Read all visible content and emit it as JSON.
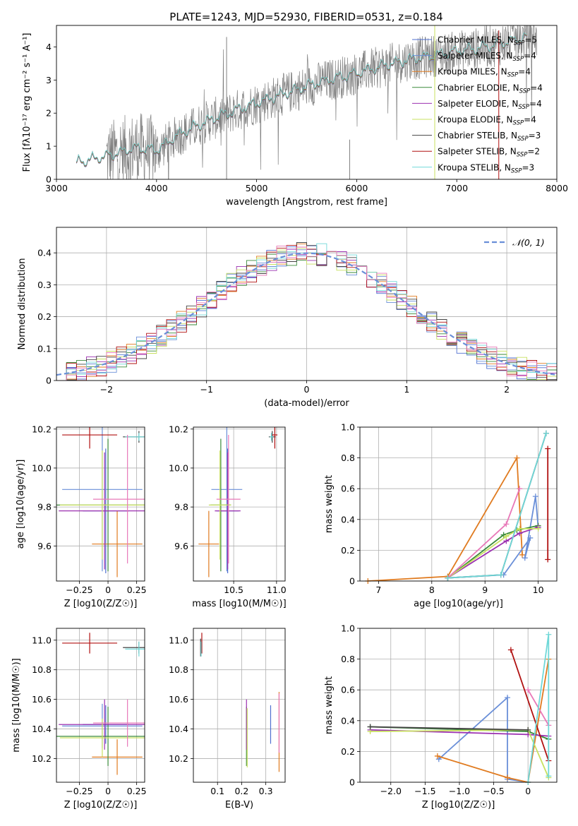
{
  "figure": {
    "title": "PLATE=1243, MJD=52930, FIBERID=0531, z=0.184"
  },
  "colors": {
    "Chabrier MILES": "#4f6fd0",
    "Salpeter MILES": "#6a8fd8",
    "Kroupa MILES": "#e07b20",
    "Chabrier ELODIE": "#3a8a3a",
    "Salpeter ELODIE": "#9b30b0",
    "Kroupa ELODIE": "#c8e060",
    "Chabrier STELIB": "#444444",
    "Salpeter STELIB": "#b01010",
    "Kroupa STELIB": "#70d8d8",
    "pink": "#e878b8",
    "data": "#808080",
    "gauss": "#6a8fd8"
  },
  "chart_data": [
    {
      "id": "spectrum",
      "type": "line",
      "xlabel": "wavelength [Angstrom, rest frame]",
      "ylabel": "Flux [fλ10⁻¹⁷ erg cm⁻² s⁻¹ A⁻¹]",
      "xlim": [
        3000,
        8000
      ],
      "ylim": [
        0,
        4.65
      ],
      "xticks": [
        3000,
        4000,
        5000,
        6000,
        7000,
        8000
      ],
      "yticks": [
        0,
        1,
        2,
        3,
        4
      ],
      "legend_position": "top-right",
      "legend": [
        "Chabrier MILES, NSSP=5",
        "Salpeter MILES, NSSP=4",
        "Kroupa MILES, NSSP=4",
        "Chabrier ELODIE, NSSP=4",
        "Salpeter ELODIE, NSSP=4",
        "Kroupa ELODIE, NSSP=4",
        "Chabrier STELIB, NSSP=3",
        "Salpeter STELIB, NSSP=2",
        "Kroupa STELIB, NSSP=3"
      ],
      "continuum": {
        "x": [
          3200,
          3500,
          3800,
          4000,
          4200,
          4500,
          5000,
          5300,
          5600,
          6000,
          6500,
          7000,
          7400,
          7700
        ],
        "y": [
          0.5,
          0.7,
          0.95,
          0.85,
          1.3,
          1.75,
          2.3,
          2.6,
          2.9,
          3.2,
          3.6,
          3.85,
          4.05,
          4.3
        ]
      }
    },
    {
      "id": "residuals",
      "type": "line",
      "xlabel": "(data-model)/error",
      "ylabel": "Normed distribution",
      "xlim": [
        -2.5,
        2.5
      ],
      "ylim": [
        0,
        0.48
      ],
      "xticks": [
        -2,
        -1,
        0,
        1,
        2
      ],
      "yticks": [
        0.0,
        0.1,
        0.2,
        0.3,
        0.4
      ],
      "legend": [
        "𝒩(0, 1)"
      ],
      "legend_position": "top-right",
      "series": [
        {
          "name": "N(0,1)",
          "type": "gaussian",
          "mu": 0,
          "sigma": 1
        }
      ]
    },
    {
      "id": "age_vs_Z",
      "type": "scatter",
      "xlabel": "Z [log10(Z/Z☉)]",
      "ylabel": "age [log10(age/yr)]",
      "xlim": [
        -0.45,
        0.32
      ],
      "ylim": [
        9.42,
        10.21
      ],
      "xticks": [
        -0.25,
        0.0,
        0.25
      ],
      "yticks": [
        9.6,
        9.8,
        10.0,
        10.2
      ],
      "points": [
        {
          "model": "Chabrier MILES",
          "x": -0.02,
          "y": 9.78,
          "xerr": 0.2,
          "yerr": 0.32
        },
        {
          "model": "Salpeter MILES",
          "x": -0.05,
          "y": 9.89,
          "xerr": 0.35,
          "yerr": 0.42
        },
        {
          "model": "Kroupa MILES",
          "x": 0.08,
          "y": 9.61,
          "xerr": 0.22,
          "yerr": 0.17
        },
        {
          "model": "Chabrier ELODIE",
          "x": 0.0,
          "y": 9.81,
          "xerr": 0.45,
          "yerr": 0.34
        },
        {
          "model": "Salpeter ELODIE",
          "x": -0.03,
          "y": 9.78,
          "xerr": 0.4,
          "yerr": 0.3
        },
        {
          "model": "Kroupa ELODIE",
          "x": -0.05,
          "y": 9.81,
          "xerr": 0.37,
          "yerr": 0.28
        },
        {
          "model": "Chabrier STELIB",
          "x": 0.27,
          "y": 10.16,
          "xerr": 0.14,
          "yerr": 0.03
        },
        {
          "model": "Salpeter STELIB",
          "x": -0.16,
          "y": 10.17,
          "xerr": 0.24,
          "yerr": 0.07
        },
        {
          "model": "Kroupa STELIB",
          "x": 0.27,
          "y": 10.16,
          "xerr": 0.12,
          "yerr": 0.02
        },
        {
          "model": "pink",
          "x": 0.17,
          "y": 9.84,
          "xerr": 0.3,
          "yerr": 0.33
        }
      ]
    },
    {
      "id": "age_vs_mass",
      "type": "scatter",
      "xlabel": "mass [log10(M/M☉)]",
      "ylabel": "",
      "xlim": [
        10.03,
        11.1
      ],
      "ylim": [
        9.42,
        10.21
      ],
      "xticks": [
        10.5,
        11.0
      ],
      "yticks": [
        9.6,
        9.8,
        10.0,
        10.2
      ],
      "points": [
        {
          "model": "Chabrier MILES",
          "x": 10.43,
          "y": 9.78,
          "xerr": 0.13,
          "yerr": 0.32
        },
        {
          "model": "Salpeter MILES",
          "x": 10.42,
          "y": 9.89,
          "xerr": 0.18,
          "yerr": 0.42
        },
        {
          "model": "Kroupa MILES",
          "x": 10.21,
          "y": 9.61,
          "xerr": 0.12,
          "yerr": 0.17
        },
        {
          "model": "Chabrier ELODIE",
          "x": 10.35,
          "y": 9.81,
          "xerr": 0.12,
          "yerr": 0.34
        },
        {
          "model": "Salpeter ELODIE",
          "x": 10.43,
          "y": 9.78,
          "xerr": 0.15,
          "yerr": 0.3
        },
        {
          "model": "Kroupa ELODIE",
          "x": 10.34,
          "y": 9.81,
          "xerr": 0.13,
          "yerr": 0.28
        },
        {
          "model": "Chabrier STELIB",
          "x": 10.95,
          "y": 10.16,
          "xerr": 0.04,
          "yerr": 0.03
        },
        {
          "model": "Salpeter STELIB",
          "x": 10.98,
          "y": 10.17,
          "xerr": 0.03,
          "yerr": 0.07
        },
        {
          "model": "Kroupa STELIB",
          "x": 10.94,
          "y": 10.16,
          "xerr": 0.02,
          "yerr": 0.02
        },
        {
          "model": "pink",
          "x": 10.44,
          "y": 9.84,
          "xerr": 0.14,
          "yerr": 0.33
        }
      ]
    },
    {
      "id": "weight_vs_age",
      "type": "line",
      "xlabel": "age [log10(age/yr)]",
      "ylabel": "mass weight",
      "xlim": [
        6.65,
        10.35
      ],
      "ylim": [
        0,
        1.0
      ],
      "xticks": [
        7,
        8,
        9,
        10
      ],
      "yticks": [
        0.0,
        0.2,
        0.4,
        0.6,
        0.8,
        1.0
      ],
      "series": [
        {
          "model": "Kroupa MILES",
          "x": [
            6.8,
            8.3,
            9.6,
            9.7
          ],
          "y": [
            0.0,
            0.03,
            0.8,
            0.17
          ]
        },
        {
          "model": "Salpeter MILES",
          "x": [
            8.3,
            9.35,
            9.85,
            9.75,
            9.95,
            10.0
          ],
          "y": [
            0.02,
            0.04,
            0.28,
            0.15,
            0.55,
            0.35
          ]
        },
        {
          "model": "Chabrier ELODIE",
          "x": [
            8.3,
            9.35,
            9.6,
            10.0
          ],
          "y": [
            0.02,
            0.3,
            0.33,
            0.36
          ]
        },
        {
          "model": "Salpeter ELODIE",
          "x": [
            8.3,
            9.4,
            9.65,
            10.0
          ],
          "y": [
            0.02,
            0.26,
            0.31,
            0.35
          ]
        },
        {
          "model": "Kroupa ELODIE",
          "x": [
            8.3,
            9.4,
            9.65,
            10.0
          ],
          "y": [
            0.02,
            0.29,
            0.34,
            0.34
          ]
        },
        {
          "model": "pink",
          "x": [
            8.3,
            9.4,
            9.65
          ],
          "y": [
            0.02,
            0.37,
            0.6
          ]
        },
        {
          "model": "Chabrier STELIB",
          "x": [
            8.3,
            9.3,
            10.15
          ],
          "y": [
            0.02,
            0.04,
            0.96
          ]
        },
        {
          "model": "Salpeter STELIB",
          "x": [
            10.18,
            10.18
          ],
          "y": [
            0.14,
            0.86
          ]
        },
        {
          "model": "Kroupa STELIB",
          "x": [
            8.3,
            9.3,
            10.15
          ],
          "y": [
            0.02,
            0.04,
            0.96
          ]
        }
      ]
    },
    {
      "id": "mass_vs_Z",
      "type": "scatter",
      "xlabel": "Z [log10(Z/Z☉)]",
      "ylabel": "mass [log10(M/M☉)]",
      "xlim": [
        -0.45,
        0.32
      ],
      "ylim": [
        10.04,
        11.08
      ],
      "xticks": [
        -0.25,
        0.0,
        0.25
      ],
      "yticks": [
        10.2,
        10.4,
        10.6,
        10.8,
        11.0
      ],
      "points": [
        {
          "model": "Chabrier MILES",
          "x": -0.02,
          "y": 10.43,
          "xerr": 0.2,
          "yerr": 0.13
        },
        {
          "model": "Salpeter MILES",
          "x": -0.05,
          "y": 10.42,
          "xerr": 0.35,
          "yerr": 0.15
        },
        {
          "model": "Kroupa MILES",
          "x": 0.08,
          "y": 10.21,
          "xerr": 0.22,
          "yerr": 0.12
        },
        {
          "model": "Chabrier ELODIE",
          "x": 0.0,
          "y": 10.35,
          "xerr": 0.45,
          "yerr": 0.2
        },
        {
          "model": "Salpeter ELODIE",
          "x": -0.03,
          "y": 10.43,
          "xerr": 0.4,
          "yerr": 0.17
        },
        {
          "model": "Kroupa ELODIE",
          "x": -0.05,
          "y": 10.34,
          "xerr": 0.37,
          "yerr": 0.13
        },
        {
          "model": "Chabrier STELIB",
          "x": 0.27,
          "y": 10.95,
          "xerr": 0.14,
          "yerr": 0.04
        },
        {
          "model": "Salpeter STELIB",
          "x": -0.16,
          "y": 10.98,
          "xerr": 0.24,
          "yerr": 0.07
        },
        {
          "model": "Kroupa STELIB",
          "x": 0.27,
          "y": 10.94,
          "xerr": 0.12,
          "yerr": 0.05
        },
        {
          "model": "pink",
          "x": 0.17,
          "y": 10.44,
          "xerr": 0.3,
          "yerr": 0.16
        }
      ]
    },
    {
      "id": "mass_vs_EBV",
      "type": "scatter",
      "xlabel": "E(B-V)",
      "ylabel": "",
      "xlim": [
        0.0,
        0.38
      ],
      "ylim": [
        10.04,
        11.08
      ],
      "xticks": [
        0.1,
        0.2,
        0.3
      ],
      "yticks": [
        10.2,
        10.4,
        10.6,
        10.8,
        11.0
      ],
      "points": [
        {
          "model": "Chabrier MILES",
          "x": 0.32,
          "y": 10.43,
          "xerr": 0.0,
          "yerr": 0.13
        },
        {
          "model": "Kroupa MILES",
          "x": 0.355,
          "y": 10.38,
          "xerr": 0.0,
          "yerr": 0.27
        },
        {
          "model": "Chabrier ELODIE",
          "x": 0.22,
          "y": 10.35,
          "xerr": 0.0,
          "yerr": 0.2
        },
        {
          "model": "Salpeter ELODIE",
          "x": 0.22,
          "y": 10.43,
          "xerr": 0.0,
          "yerr": 0.17
        },
        {
          "model": "Kroupa ELODIE",
          "x": 0.223,
          "y": 10.34,
          "xerr": 0.0,
          "yerr": 0.2
        },
        {
          "model": "pink",
          "x": 0.355,
          "y": 10.44,
          "xerr": 0.0,
          "yerr": 0.2
        },
        {
          "model": "Chabrier STELIB",
          "x": 0.03,
          "y": 10.95,
          "xerr": 0.0,
          "yerr": 0.06
        },
        {
          "model": "Salpeter STELIB",
          "x": 0.035,
          "y": 10.98,
          "xerr": 0.0,
          "yerr": 0.07
        },
        {
          "model": "Kroupa STELIB",
          "x": 0.032,
          "y": 10.94,
          "xerr": 0.0,
          "yerr": 0.05
        }
      ]
    },
    {
      "id": "weight_vs_Z",
      "type": "line",
      "xlabel": "Z [log10(Z/Z☉)]",
      "ylabel": "mass weight",
      "xlim": [
        -2.45,
        0.42
      ],
      "ylim": [
        0,
        1.0
      ],
      "xticks": [
        -2.0,
        -1.5,
        -1.0,
        -0.5,
        0.0
      ],
      "yticks": [
        0.0,
        0.2,
        0.4,
        0.6,
        0.8,
        1.0
      ],
      "series": [
        {
          "model": "Salpeter MILES",
          "x": [
            -1.3,
            -0.3,
            -0.3,
            0.0
          ],
          "y": [
            0.15,
            0.55,
            0.02,
            0.0
          ]
        },
        {
          "model": "Kroupa MILES",
          "x": [
            -1.32,
            -0.3,
            0.0,
            0.3
          ],
          "y": [
            0.17,
            0.03,
            0.0,
            0.8
          ]
        },
        {
          "model": "Chabrier ELODIE",
          "x": [
            -2.3,
            0.0,
            0.3
          ],
          "y": [
            0.36,
            0.33,
            0.28
          ]
        },
        {
          "model": "Salpeter ELODIE",
          "x": [
            -2.3,
            0.0,
            0.3
          ],
          "y": [
            0.34,
            0.31,
            0.3
          ]
        },
        {
          "model": "Kroupa ELODIE",
          "x": [
            -2.3,
            0.0,
            0.3
          ],
          "y": [
            0.33,
            0.34,
            0.03
          ]
        },
        {
          "model": "Chabrier STELIB",
          "x": [
            -2.3,
            0.0
          ],
          "y": [
            0.36,
            0.34
          ]
        },
        {
          "model": "pink",
          "x": [
            0.0,
            0.3
          ],
          "y": [
            0.6,
            0.37
          ]
        },
        {
          "model": "Salpeter STELIB",
          "x": [
            -0.25,
            0.3
          ],
          "y": [
            0.86,
            0.14
          ]
        },
        {
          "model": "Kroupa STELIB",
          "x": [
            0.0,
            0.3,
            0.3
          ],
          "y": [
            0.0,
            0.96,
            0.04
          ]
        }
      ]
    }
  ]
}
